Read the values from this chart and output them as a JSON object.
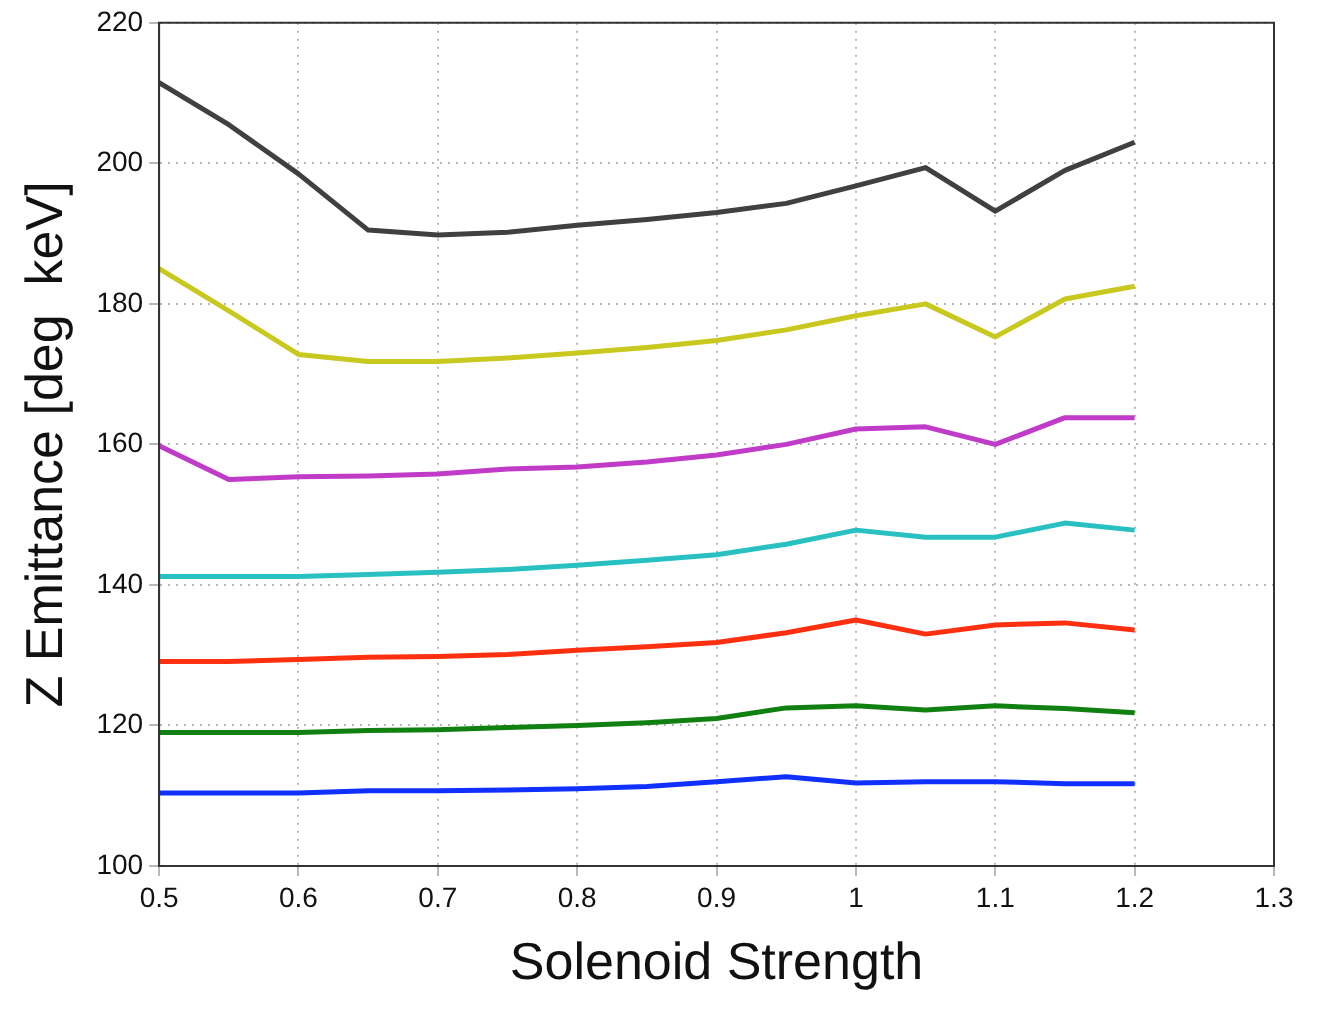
{
  "chart_data": {
    "type": "line",
    "xlabel": "Solenoid Strength",
    "ylabel": "Z Emittance [deg  keV]",
    "x": [
      0.5,
      0.55,
      0.6,
      0.65,
      0.7,
      0.75,
      0.8,
      0.85,
      0.9,
      0.95,
      1.0,
      1.05,
      1.1,
      1.15,
      1.2
    ],
    "series": [
      {
        "color": "#404040",
        "values": [
          211.5,
          205.5,
          198.5,
          190.5,
          189.8,
          190.2,
          191.2,
          192,
          193,
          194.3,
          196.8,
          199.4,
          193.2,
          199,
          203
        ]
      },
      {
        "color": "#c8c81e",
        "values": [
          185,
          179,
          172.8,
          171.8,
          171.8,
          172.3,
          173,
          173.8,
          174.8,
          176.3,
          178.3,
          180,
          175.3,
          180.7,
          182.5
        ]
      },
      {
        "color": "#c03cc8",
        "values": [
          159.8,
          155,
          155.4,
          155.5,
          155.8,
          156.5,
          156.8,
          157.5,
          158.5,
          160,
          162.2,
          162.5,
          160,
          163.8,
          163.8
        ]
      },
      {
        "color": "#28c0c0",
        "values": [
          141.2,
          141.2,
          141.2,
          141.5,
          141.8,
          142.2,
          142.8,
          143.5,
          144.3,
          145.8,
          147.8,
          146.8,
          146.8,
          148.8,
          147.8
        ]
      },
      {
        "color": "#ff3010",
        "values": [
          129.1,
          129.1,
          129.4,
          129.7,
          129.8,
          130.1,
          130.7,
          131.2,
          131.8,
          133.2,
          135,
          133,
          134.3,
          134.6,
          133.6
        ]
      },
      {
        "color": "#108010",
        "values": [
          119,
          119,
          119,
          119.3,
          119.4,
          119.7,
          120,
          120.4,
          121,
          122.5,
          122.8,
          122.2,
          122.8,
          122.4,
          121.8
        ]
      },
      {
        "color": "#1030ff",
        "values": [
          110.4,
          110.4,
          110.4,
          110.7,
          110.7,
          110.8,
          111,
          111.3,
          112,
          112.7,
          111.8,
          112,
          112,
          111.7,
          111.7
        ]
      }
    ],
    "xlim": [
      0.5,
      1.3
    ],
    "xticks": [
      0.5,
      0.6,
      0.7,
      0.8,
      0.9,
      1,
      1.1,
      1.2,
      1.3
    ],
    "ylim": [
      100,
      220
    ],
    "yticks": [
      100,
      120,
      140,
      160,
      180,
      200,
      220
    ],
    "grid": true,
    "legend": false,
    "marker": "none",
    "line_style": "solid"
  }
}
